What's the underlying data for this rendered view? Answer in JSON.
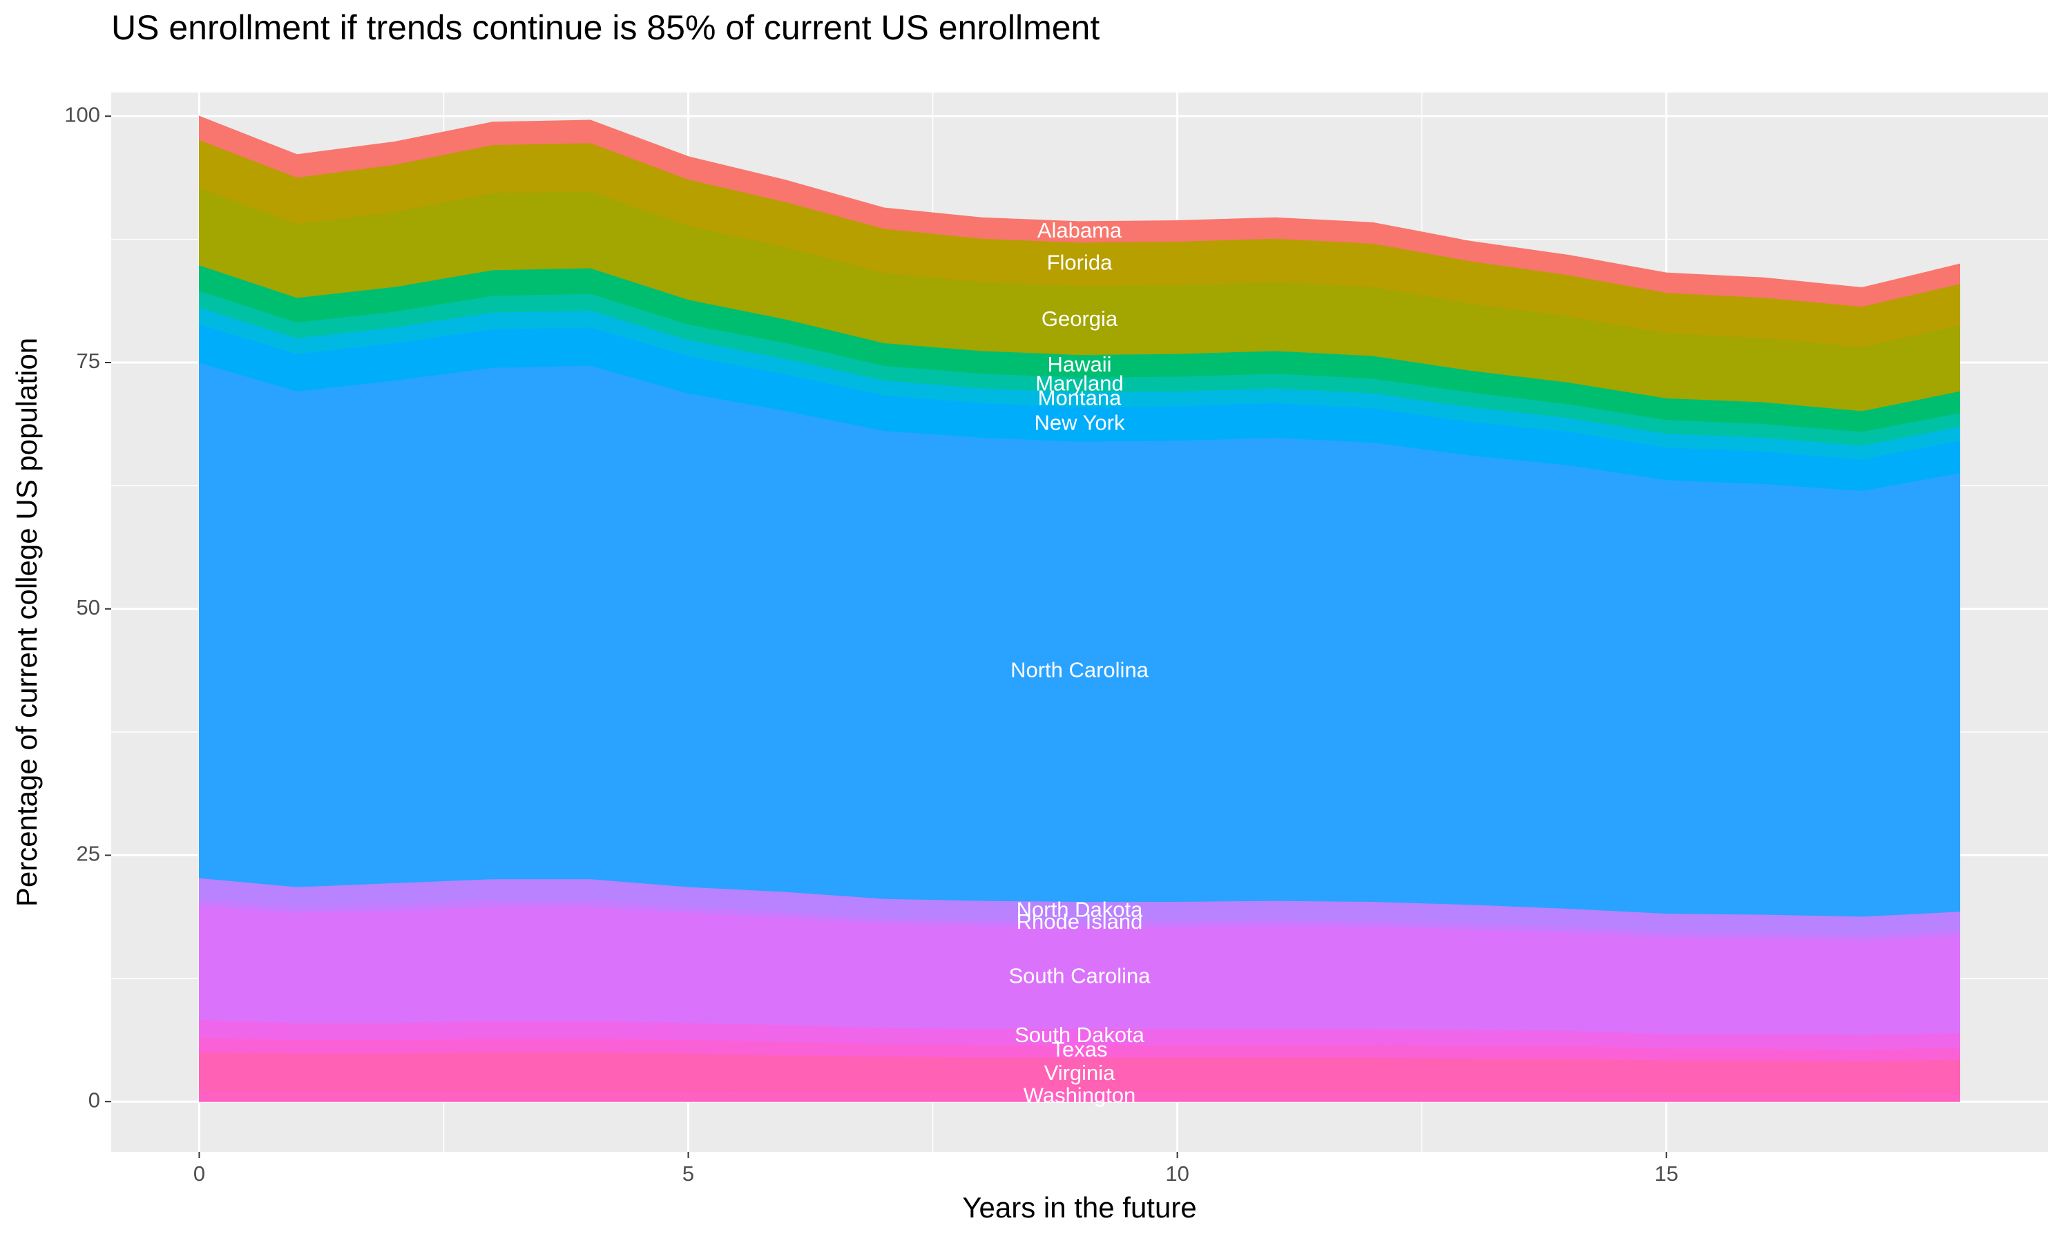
{
  "chart_data": {
    "type": "stacked_area",
    "title": "US enrollment if trends continue is 85% of current US enrollment",
    "x_label": "Years in the future",
    "y_label": "Percentage of current college US population",
    "x": [
      0,
      1,
      2,
      3,
      4,
      5,
      6,
      7,
      8,
      9,
      10,
      11,
      12,
      13,
      14,
      15,
      16,
      17,
      18
    ],
    "xlim": [
      -0.9,
      18.9
    ],
    "xticks": [
      0,
      5,
      10,
      15
    ],
    "ylim": [
      -5.1,
      102.4
    ],
    "yticks": [
      0,
      25,
      50,
      75,
      100
    ],
    "grid": true,
    "series": [
      {
        "name": "Washington",
        "color": "#ff61c3",
        "values": [
          1.1,
          1.1,
          1.1,
          1.1,
          1.1,
          1.1,
          1.0,
          1.0,
          1.0,
          1.0,
          1.0,
          1.0,
          1.0,
          1.0,
          1.0,
          0.9,
          0.9,
          0.9,
          1.0
        ]
      },
      {
        "name": "Virginia",
        "color": "#ff61b4",
        "values": [
          3.9,
          3.8,
          3.8,
          3.9,
          3.9,
          3.8,
          3.7,
          3.6,
          3.5,
          3.5,
          3.5,
          3.5,
          3.5,
          3.4,
          3.4,
          3.3,
          3.3,
          3.2,
          3.3
        ]
      },
      {
        "name": "Texas",
        "color": "#fb61d7",
        "values": [
          1.5,
          1.4,
          1.4,
          1.4,
          1.4,
          1.4,
          1.4,
          1.3,
          1.3,
          1.3,
          1.3,
          1.3,
          1.3,
          1.3,
          1.3,
          1.2,
          1.2,
          1.2,
          1.2
        ]
      },
      {
        "name": "South Dakota",
        "color": "#f066ea",
        "values": [
          1.8,
          1.7,
          1.7,
          1.8,
          1.8,
          1.7,
          1.7,
          1.6,
          1.6,
          1.6,
          1.6,
          1.6,
          1.6,
          1.6,
          1.5,
          1.5,
          1.5,
          1.5,
          1.5
        ]
      },
      {
        "name": "South Carolina",
        "color": "#db72fb",
        "values": [
          11.6,
          11.2,
          11.4,
          11.6,
          11.6,
          11.2,
          10.9,
          10.6,
          10.5,
          10.4,
          10.4,
          10.5,
          10.4,
          10.2,
          10.0,
          9.8,
          9.7,
          9.6,
          9.9
        ]
      },
      {
        "name": "Rhode Island",
        "color": "#c77cff",
        "values": [
          0.7,
          0.6,
          0.7,
          0.7,
          0.7,
          0.6,
          0.6,
          0.6,
          0.6,
          0.6,
          0.6,
          0.6,
          0.6,
          0.6,
          0.6,
          0.6,
          0.6,
          0.6,
          0.6
        ]
      },
      {
        "name": "North Dakota",
        "color": "#b983ff",
        "values": [
          2.1,
          2.0,
          2.1,
          2.1,
          2.1,
          2.0,
          2.0,
          1.9,
          1.9,
          1.9,
          1.9,
          1.9,
          1.9,
          1.9,
          1.8,
          1.8,
          1.8,
          1.8,
          1.8
        ]
      },
      {
        "name": "North Carolina",
        "color": "#29a3ff",
        "values": [
          52.3,
          50.3,
          51.0,
          51.9,
          52.1,
          50.1,
          48.8,
          47.5,
          47.0,
          46.7,
          46.8,
          47.0,
          46.6,
          45.6,
          45.0,
          44.0,
          43.7,
          43.2,
          44.5
        ]
      },
      {
        "name": "New York",
        "color": "#00adfa",
        "values": [
          3.9,
          3.8,
          3.8,
          3.9,
          3.9,
          3.8,
          3.7,
          3.6,
          3.5,
          3.5,
          3.5,
          3.5,
          3.5,
          3.4,
          3.4,
          3.3,
          3.3,
          3.2,
          3.3
        ]
      },
      {
        "name": "Montana",
        "color": "#00b9e3",
        "values": [
          1.7,
          1.6,
          1.6,
          1.7,
          1.7,
          1.6,
          1.6,
          1.5,
          1.5,
          1.5,
          1.5,
          1.5,
          1.5,
          1.5,
          1.4,
          1.4,
          1.4,
          1.4,
          1.4
        ]
      },
      {
        "name": "Maryland",
        "color": "#00c1a3",
        "values": [
          1.7,
          1.6,
          1.6,
          1.7,
          1.7,
          1.6,
          1.6,
          1.5,
          1.5,
          1.5,
          1.5,
          1.5,
          1.5,
          1.5,
          1.4,
          1.4,
          1.4,
          1.4,
          1.4
        ]
      },
      {
        "name": "Hawaii",
        "color": "#00be70",
        "values": [
          2.6,
          2.5,
          2.5,
          2.6,
          2.6,
          2.5,
          2.4,
          2.3,
          2.3,
          2.3,
          2.3,
          2.3,
          2.3,
          2.2,
          2.2,
          2.2,
          2.2,
          2.1,
          2.2
        ]
      },
      {
        "name": "Georgia",
        "color": "#a3a500",
        "values": [
          7.8,
          7.5,
          7.6,
          7.8,
          7.8,
          7.5,
          7.3,
          7.1,
          7.0,
          7.0,
          7.0,
          7.0,
          7.0,
          6.8,
          6.7,
          6.6,
          6.5,
          6.5,
          6.7
        ]
      },
      {
        "name": "Florida",
        "color": "#b79f00",
        "values": [
          4.9,
          4.7,
          4.8,
          4.9,
          4.9,
          4.7,
          4.6,
          4.5,
          4.4,
          4.4,
          4.4,
          4.4,
          4.4,
          4.3,
          4.2,
          4.1,
          4.1,
          4.1,
          4.2
        ]
      },
      {
        "name": "Alabama",
        "color": "#f8766d",
        "values": [
          2.4,
          2.3,
          2.3,
          2.3,
          2.3,
          2.3,
          2.2,
          2.1,
          2.1,
          2.1,
          2.1,
          2.1,
          2.1,
          2.0,
          2.0,
          2.0,
          2.0,
          1.9,
          2.0
        ]
      }
    ]
  }
}
